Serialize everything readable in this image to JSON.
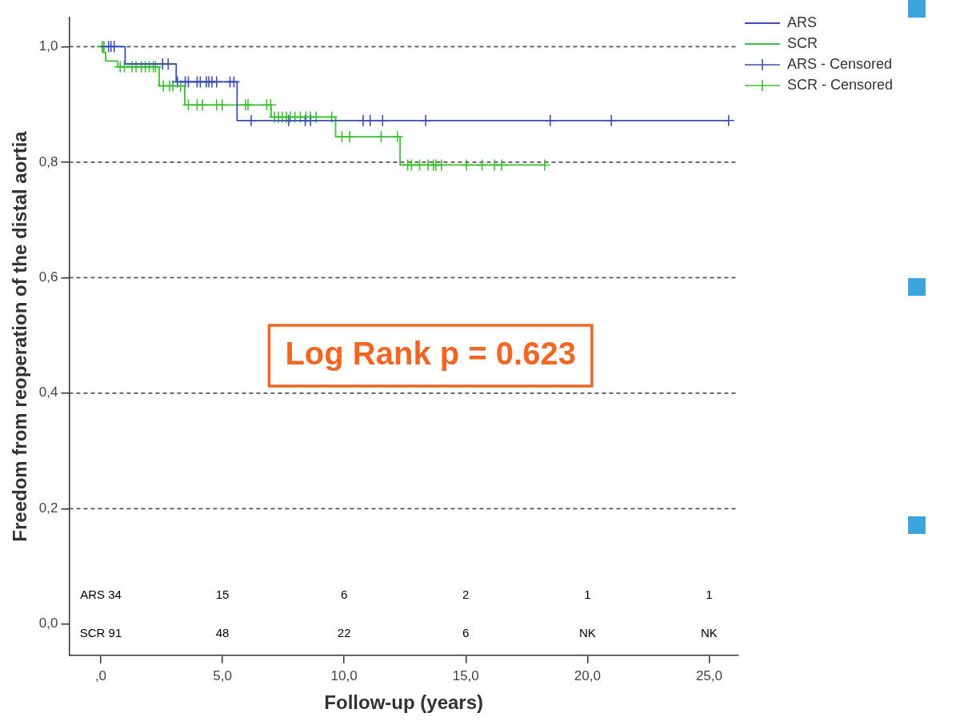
{
  "chart_data": {
    "type": "step",
    "xlabel": "Follow-up (years)",
    "ylabel": "Freedom from reoperation of the distal aortia",
    "xlim": [
      -1.3,
      26.2
    ],
    "ylim": [
      -0.054,
      1.05
    ],
    "xticks": [
      {
        "value": 0,
        "label": ",0"
      },
      {
        "value": 5,
        "label": "5,0"
      },
      {
        "value": 10,
        "label": "10,0"
      },
      {
        "value": 15,
        "label": "15,0"
      },
      {
        "value": 20,
        "label": "20,0"
      },
      {
        "value": 25,
        "label": "25,0"
      }
    ],
    "yticks": [
      {
        "value": 0,
        "label": "0,0"
      },
      {
        "value": 0.2,
        "label": "0,2"
      },
      {
        "value": 0.4,
        "label": "0,4"
      },
      {
        "value": 0.6,
        "label": "0,6"
      },
      {
        "value": 0.8,
        "label": "0,8"
      },
      {
        "value": 1,
        "label": "1,0"
      }
    ],
    "grid": "y",
    "legend": "right",
    "marker": "cross",
    "series": [
      {
        "name": "ARS",
        "marker": "none",
        "color": "#3c4fb8",
        "x": [
          0,
          1.0,
          3.1,
          5.6,
          25.8
        ],
        "values": [
          1,
          0.97,
          0.939,
          0.872,
          0.872
        ]
      },
      {
        "name": "SCR",
        "marker": "none",
        "color": "#3fbf35",
        "x": [
          0,
          0.1,
          0.2,
          0.7,
          2.4,
          3.45,
          7.0,
          9.65,
          12.3,
          18.3
        ],
        "values": [
          1,
          0.99,
          0.975,
          0.965,
          0.932,
          0.899,
          0.878,
          0.844,
          0.795,
          0.795
        ]
      },
      {
        "name": "ARS - Censored",
        "type": "scatter",
        "color": "#3c4fb8",
        "x": [
          0.32,
          0.42,
          0.55,
          2.54,
          2.77,
          3.15,
          3.47,
          3.6,
          3.96,
          4.09,
          4.34,
          4.44,
          4.57,
          4.76,
          5.31,
          5.47,
          6.18,
          7.72,
          8.4,
          8.62,
          10.78,
          11.07,
          11.58,
          13.35,
          18.47,
          20.98,
          25.8
        ],
        "values": [
          1,
          1,
          1,
          0.97,
          0.97,
          0.939,
          0.939,
          0.939,
          0.939,
          0.939,
          0.939,
          0.939,
          0.939,
          0.939,
          0.939,
          0.939,
          0.872,
          0.872,
          0.872,
          0.872,
          0.872,
          0.872,
          0.872,
          0.872,
          0.872,
          0.872,
          0.872
        ]
      },
      {
        "name": "SCR - Censored",
        "type": "scatter",
        "color": "#3fbf35",
        "x": [
          0.06,
          0.13,
          0.8,
          0.97,
          1.29,
          1.45,
          1.67,
          1.83,
          1.99,
          2.16,
          2.25,
          2.57,
          2.83,
          2.96,
          3.28,
          3.6,
          3.96,
          4.18,
          4.76,
          4.99,
          5.95,
          6.05,
          6.82,
          6.98,
          7.14,
          7.3,
          7.46,
          7.63,
          7.79,
          7.98,
          8.2,
          8.43,
          8.62,
          8.85,
          9.49,
          9.91,
          10.23,
          11.52,
          12.19,
          12.61,
          12.77,
          13.1,
          13.45,
          13.67,
          13.77,
          14.0,
          15.03,
          15.67,
          16.18,
          16.47,
          18.24
        ],
        "values": [
          1,
          1,
          0.965,
          0.965,
          0.965,
          0.965,
          0.965,
          0.965,
          0.965,
          0.965,
          0.965,
          0.932,
          0.932,
          0.932,
          0.932,
          0.899,
          0.899,
          0.899,
          0.899,
          0.899,
          0.899,
          0.899,
          0.899,
          0.899,
          0.878,
          0.878,
          0.878,
          0.878,
          0.878,
          0.878,
          0.878,
          0.878,
          0.878,
          0.878,
          0.878,
          0.844,
          0.844,
          0.844,
          0.844,
          0.795,
          0.795,
          0.795,
          0.795,
          0.795,
          0.795,
          0.795,
          0.795,
          0.795,
          0.795,
          0.795,
          0.795
        ]
      }
    ],
    "annotations": [
      "Log Rank p = 0.623",
      "ARS 34",
      "15",
      "6",
      "2",
      "1",
      "1",
      "SCR 91",
      "48",
      "22",
      "6",
      "NK",
      "NK"
    ]
  }
}
